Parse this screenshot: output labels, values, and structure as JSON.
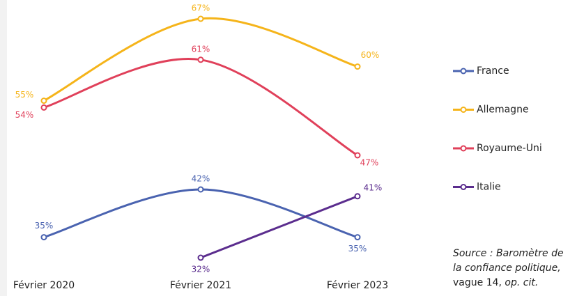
{
  "chart_data": {
    "type": "line",
    "categories": [
      "Février 2020",
      "Février 2021",
      "Février 2023"
    ],
    "series": [
      {
        "name": "France",
        "color": "#4a63b0",
        "values": [
          35,
          42,
          35
        ],
        "value_labels": [
          "35%",
          "42%",
          "35%"
        ]
      },
      {
        "name": "Allemagne",
        "color": "#f5b41a",
        "values": [
          55,
          67,
          60
        ],
        "value_labels": [
          "55%",
          "67%",
          "60%"
        ]
      },
      {
        "name": "Royaume-Uni",
        "color": "#e0405a",
        "values": [
          54,
          61,
          47
        ],
        "value_labels": [
          "54%",
          "61%",
          "47%"
        ]
      },
      {
        "name": "Italie",
        "color": "#5b2d8e",
        "values": [
          null,
          32,
          41
        ],
        "value_labels": [
          null,
          "32%",
          "41%"
        ]
      }
    ],
    "legend": "right",
    "source": [
      {
        "text": "Source : Baromètre de la confiance politique,",
        "italic": true
      },
      {
        "text": "vague 14,",
        "italic": false
      },
      {
        "text": "op. cit.",
        "italic": true
      }
    ]
  }
}
